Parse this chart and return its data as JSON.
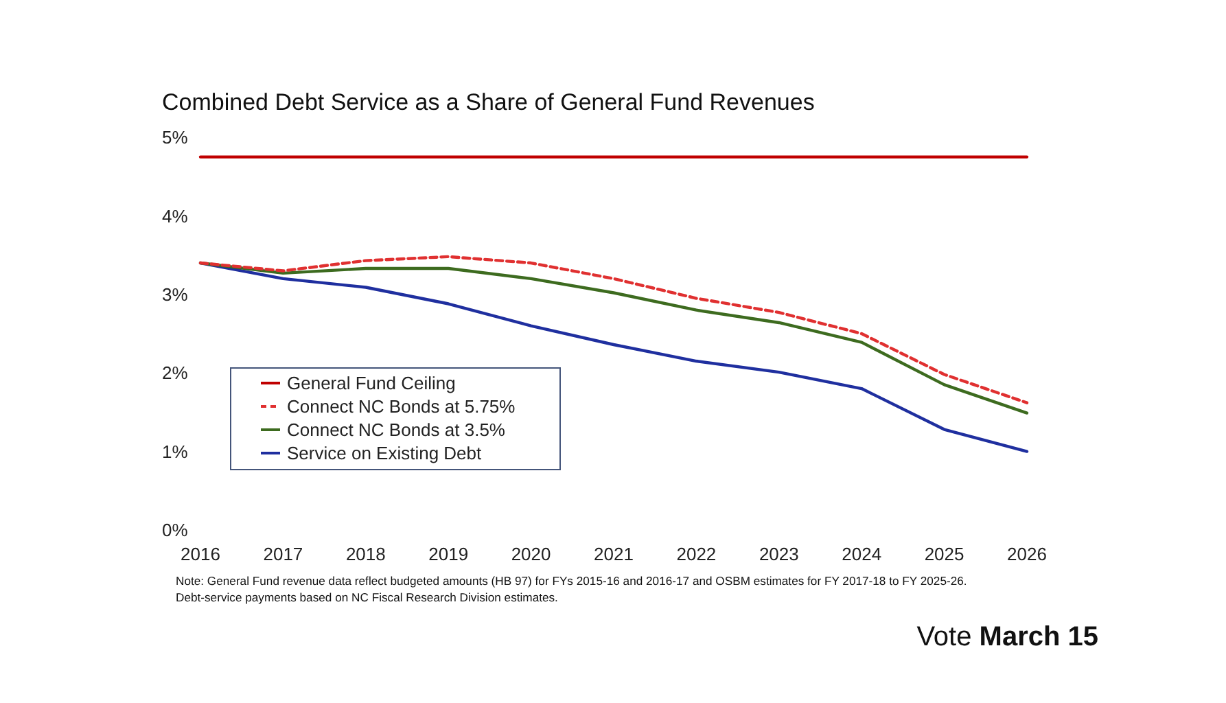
{
  "chart_data": {
    "type": "line",
    "title": "Combined Debt Service as a Share of General Fund Revenues",
    "categories": [
      "2016",
      "2017",
      "2018",
      "2019",
      "2020",
      "2021",
      "2022",
      "2023",
      "2024",
      "2025",
      "2026"
    ],
    "series": [
      {
        "name": "General Fund Ceiling",
        "color": "#c00000",
        "values": [
          4.75,
          4.75,
          4.75,
          4.75,
          4.75,
          4.75,
          4.75,
          4.75,
          4.75,
          4.75,
          4.75
        ]
      },
      {
        "name": "Connect NC Bonds at 5.75%",
        "color": "#e03030",
        "line_style": "dashed",
        "values": [
          3.4,
          3.3,
          3.43,
          3.48,
          3.4,
          3.2,
          2.95,
          2.77,
          2.5,
          1.98,
          1.62
        ]
      },
      {
        "name": "Connect NC Bonds at 3.5%",
        "color": "#3d6b1f",
        "values": [
          3.4,
          3.27,
          3.33,
          3.33,
          3.2,
          3.02,
          2.8,
          2.64,
          2.39,
          1.85,
          1.49
        ]
      },
      {
        "name": "Service on Existing Debt",
        "color": "#1f2f9f",
        "values": [
          3.4,
          3.2,
          3.09,
          2.88,
          2.6,
          2.36,
          2.15,
          2.01,
          1.8,
          1.28,
          1.0
        ]
      }
    ],
    "ylim": [
      0,
      5
    ],
    "yticks": [
      {
        "value": 0,
        "label": "0%"
      },
      {
        "value": 1,
        "label": "1%"
      },
      {
        "value": 2,
        "label": "2%"
      },
      {
        "value": 3,
        "label": "3%"
      },
      {
        "value": 4,
        "label": "4%"
      },
      {
        "value": 5,
        "label": "5%"
      }
    ],
    "legend": "bottom left",
    "marker": "none",
    "line_style": "solid",
    "annotations": [
      "Note: General Fund revenue data reflect budgeted amounts (HB 97) for FYs 2015-16 and 2016-17 and OSBM estimates for FY 2017-18 to FY 2025-26.",
      "Debt-service payments based on NC Fiscal Research Division estimates.",
      "Vote",
      "March 15"
    ]
  }
}
